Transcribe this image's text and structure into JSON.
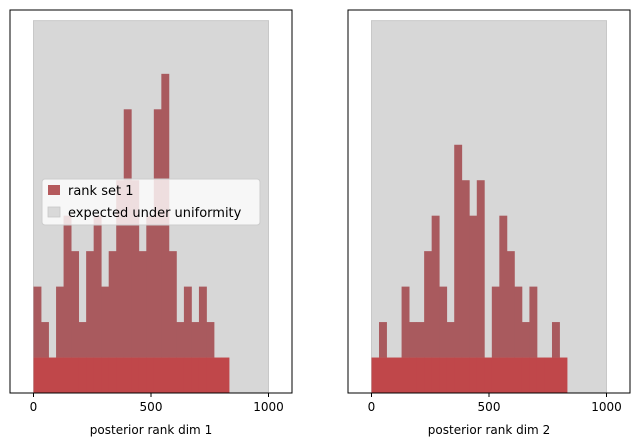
{
  "chart_data": [
    {
      "type": "bar",
      "xlabel": "posterior rank dim 1",
      "xlim": [
        -100,
        1100
      ],
      "ylim": [
        0,
        10.8
      ],
      "xticks": [
        0,
        500,
        1000
      ],
      "bin_edges_start": 0,
      "bin_width": 32,
      "uniform_band": {
        "x": [
          0,
          1000
        ],
        "y": [
          0,
          10.5
        ]
      },
      "series": [
        {
          "name": "rank set 1",
          "color": "#c0474a",
          "values": [
            3,
            2,
            1,
            3,
            5,
            4,
            2,
            4,
            5,
            3,
            4,
            6,
            8,
            6,
            4,
            5,
            8,
            9,
            4,
            2,
            3,
            2,
            3,
            2,
            1,
            1
          ]
        }
      ],
      "legend": {
        "placement": "center-left",
        "entries": [
          "rank set 1",
          "expected under uniformity"
        ]
      }
    },
    {
      "type": "bar",
      "xlabel": "posterior rank dim 2",
      "xlim": [
        -100,
        1100
      ],
      "ylim": [
        0,
        10.8
      ],
      "xticks": [
        0,
        500,
        1000
      ],
      "bin_edges_start": 0,
      "bin_width": 32,
      "uniform_band": {
        "x": [
          0,
          1000
        ],
        "y": [
          0,
          10.5
        ]
      },
      "series": [
        {
          "name": "rank set 1",
          "color": "#c0474a",
          "values": [
            1,
            2,
            1,
            1,
            3,
            2,
            2,
            4,
            5,
            3,
            2,
            7,
            6,
            5,
            6,
            1,
            3,
            5,
            4,
            3,
            2,
            3,
            1,
            1,
            2,
            1
          ]
        }
      ]
    }
  ]
}
